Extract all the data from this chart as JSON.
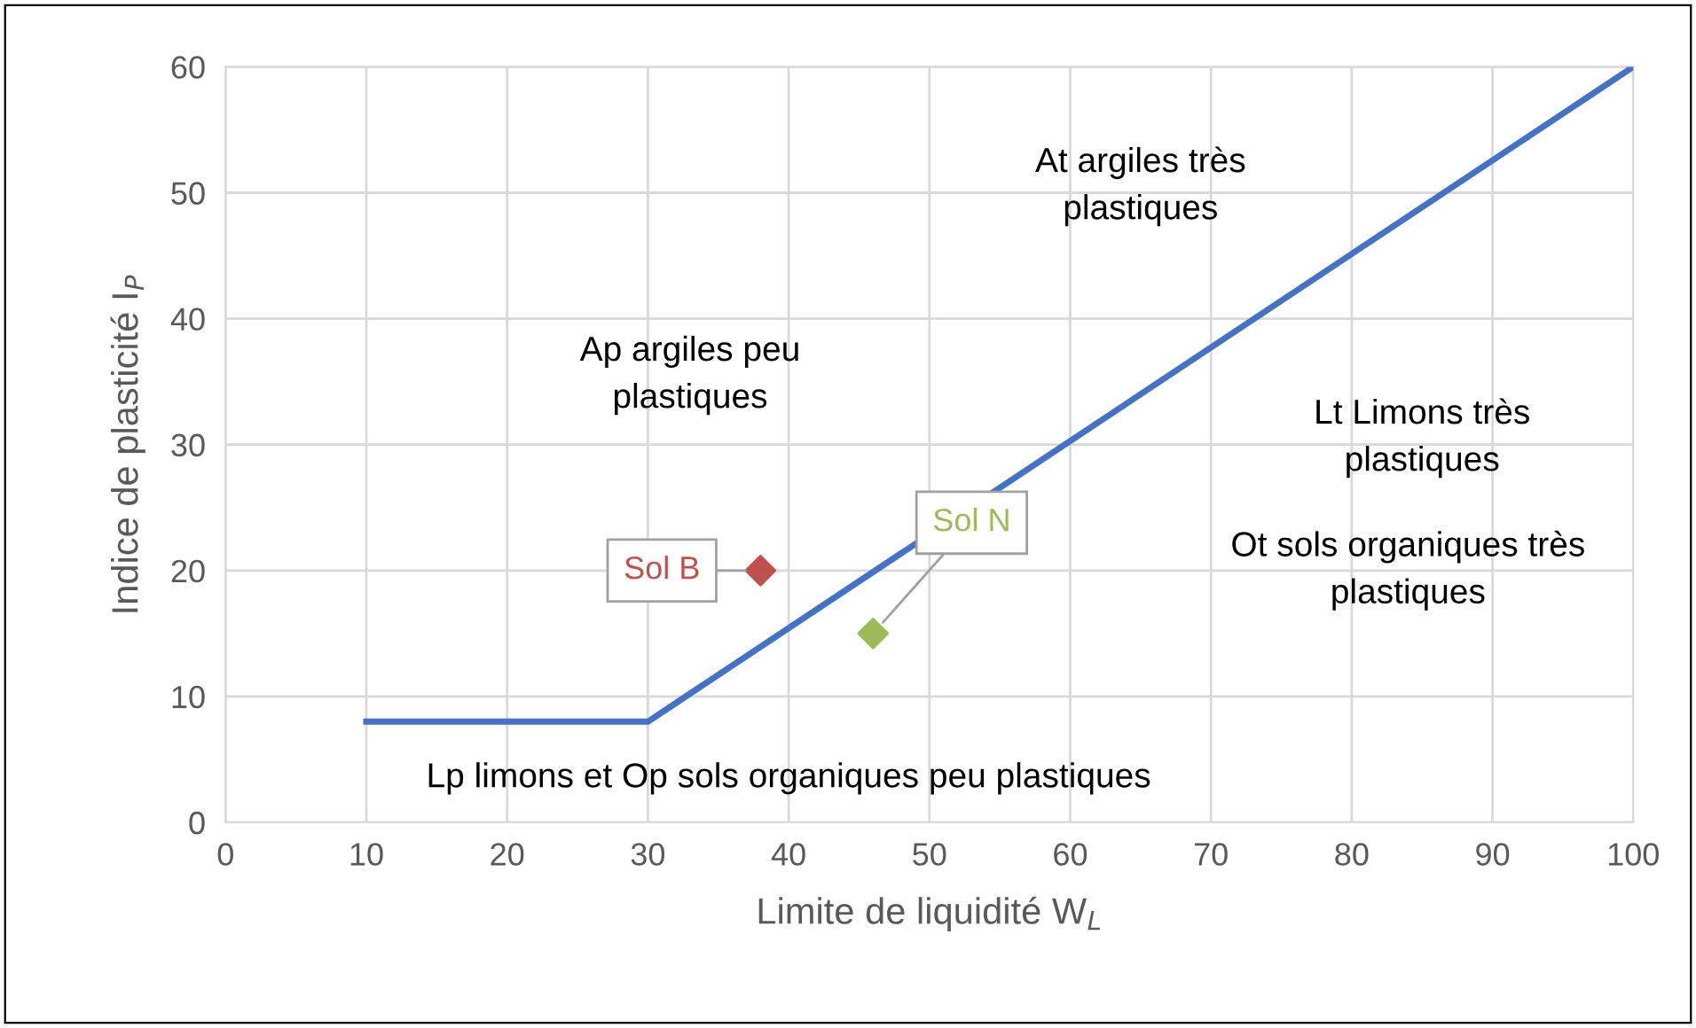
{
  "chart_data": {
    "type": "line",
    "xlabel": "Limite de liquidité W$_{L}$",
    "ylabel": "Indice de plasticité I$_{P}$",
    "xlim": [
      0,
      100
    ],
    "xticks": [
      0,
      10,
      20,
      30,
      40,
      50,
      60,
      70,
      80,
      90,
      100
    ],
    "ylim": [
      0,
      60
    ],
    "yticks": [
      0,
      10,
      20,
      30,
      40,
      50,
      60
    ],
    "grid": true,
    "legend": false,
    "series": [
      {
        "color": "#4472c4",
        "x": [
          10,
          30,
          100
        ],
        "values": [
          8,
          8,
          60
        ],
        "marker": "none"
      },
      {
        "type": "scatter",
        "name": "Sol B",
        "color": "#c0504d",
        "x": [
          38
        ],
        "values": [
          20
        ],
        "marker": "diamond"
      },
      {
        "type": "scatter",
        "name": "Sol N",
        "color": "#9bbb59",
        "x": [
          46
        ],
        "values": [
          15
        ],
        "marker": "diamond"
      }
    ],
    "annotations": [
      "At argiles très\nplastiques",
      "Ap argiles peu\nplastiques",
      "Lt Limons très\nplastiques",
      "Ot sols organiques très\nplastiques",
      "Lp limons et Op sols organiques peu plastiques"
    ]
  }
}
